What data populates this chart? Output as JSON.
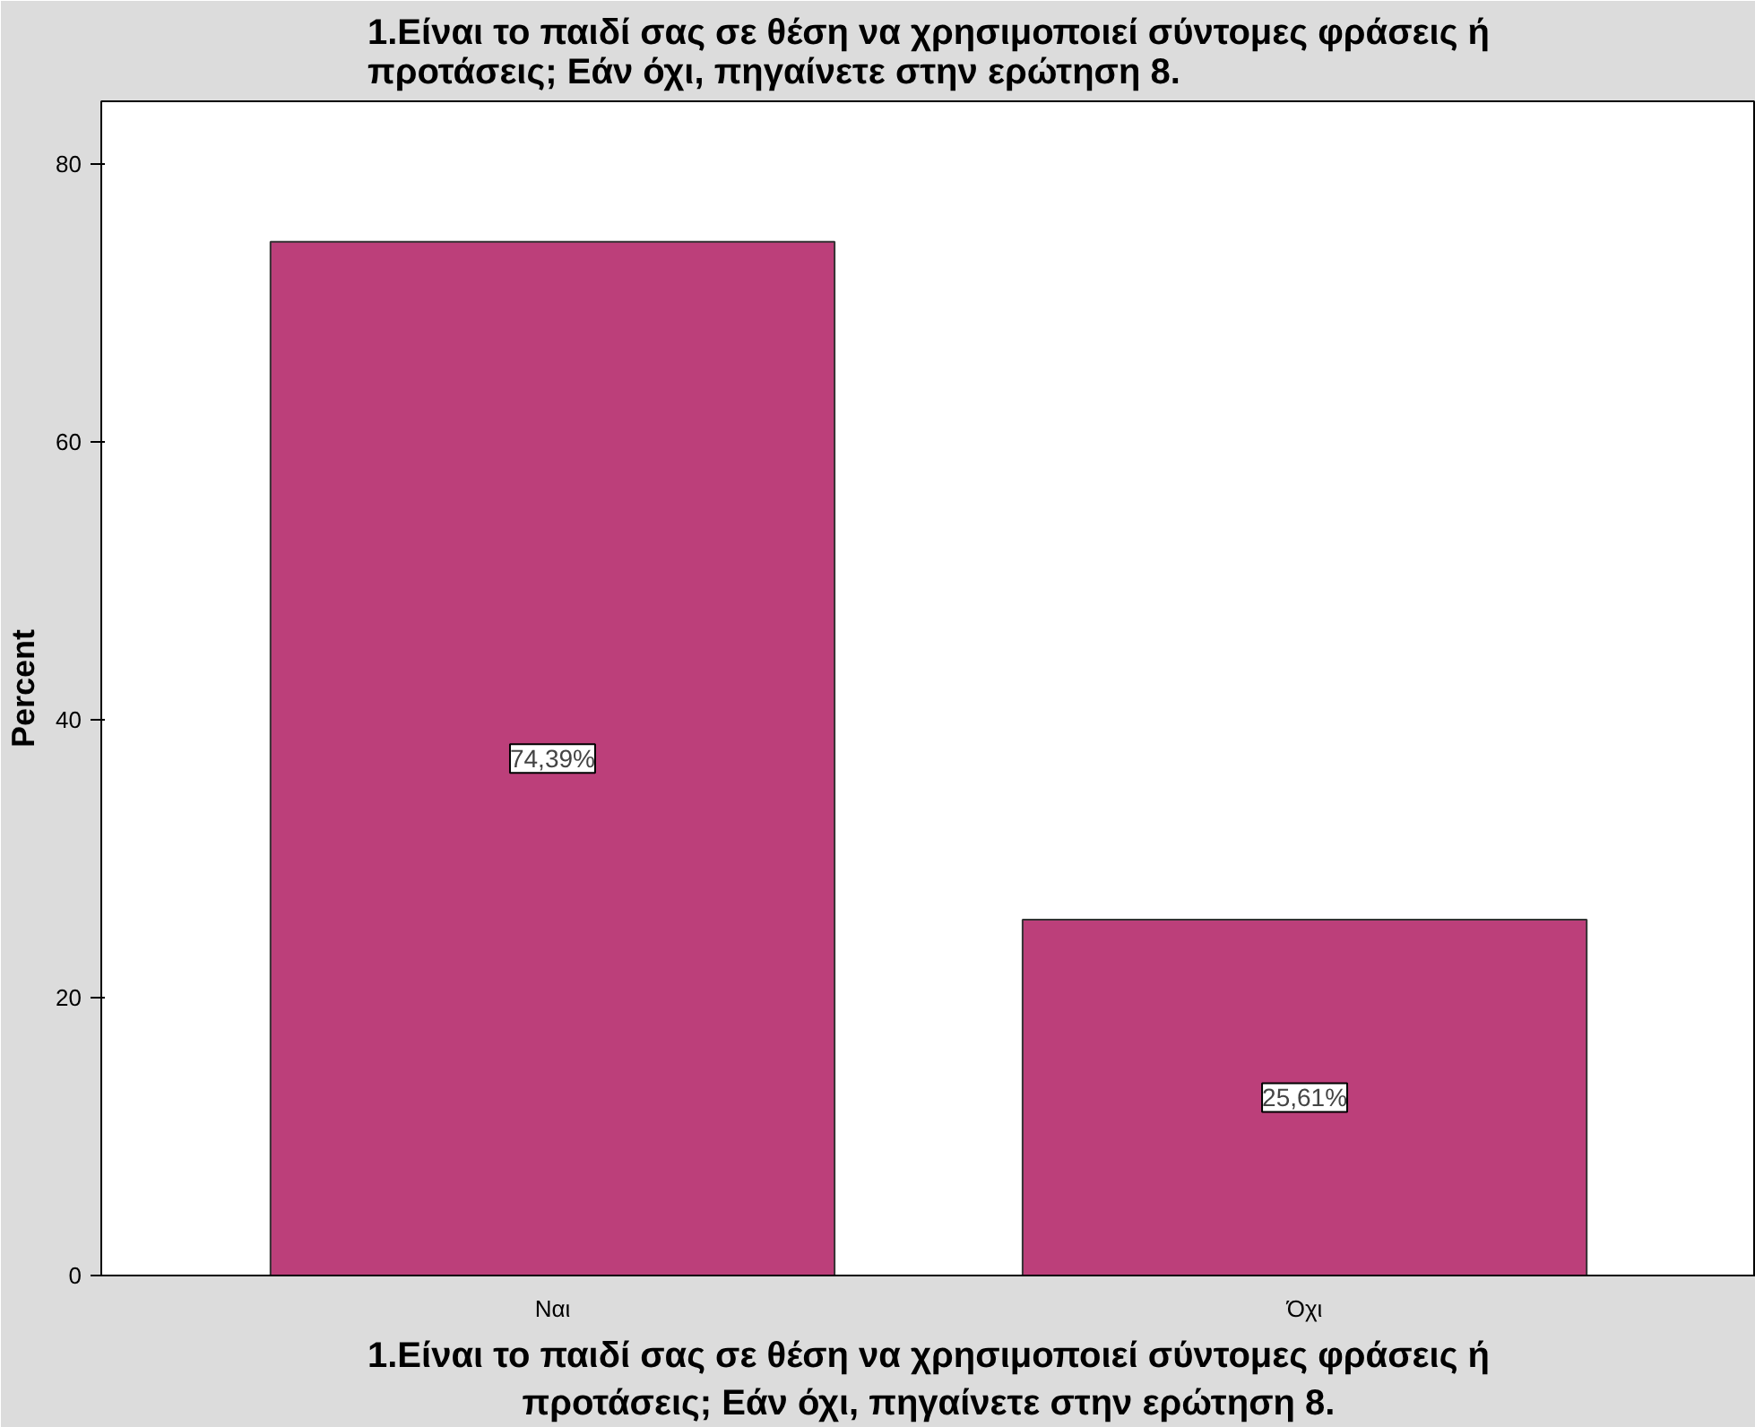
{
  "chart_data": {
    "type": "bar",
    "title": "1.Είναι το παιδί σας σε θέση να χρησιμοποιεί σύντομες φράσεις ή προτάσεις; Εάν όχι, πηγαίνετε στην ερώτηση 8.",
    "xlabel": "1.Είναι το παιδί σας σε θέση να χρησιμοποιεί σύντομες φράσεις ή προτάσεις; Εάν όχι, πηγαίνετε στην ερώτηση 8.",
    "ylabel": "Percent",
    "categories": [
      "Ναι",
      "Όχι"
    ],
    "values": [
      74.39,
      25.61
    ],
    "value_labels": [
      "74,39%",
      "25,61%"
    ],
    "color": "#bc3f7a",
    "ylim": [
      0,
      84.5
    ],
    "yticks": [
      0,
      20,
      40,
      60,
      80
    ],
    "grid": false
  }
}
